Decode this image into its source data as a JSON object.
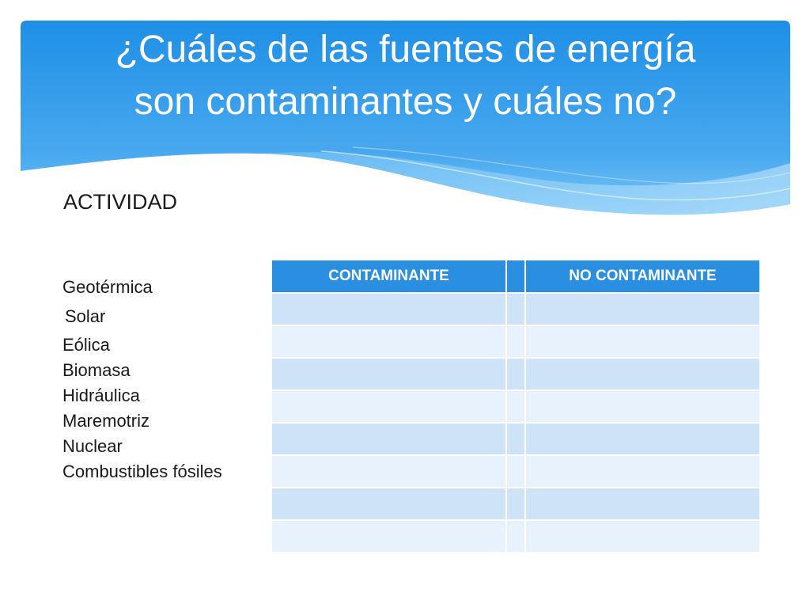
{
  "title": {
    "line1": "¿Cuáles de las fuentes de energía",
    "line2": "son contaminantes y cuáles no?"
  },
  "subtitle": "ACTIVIDAD",
  "sources": [
    "Geotérmica",
    "Solar",
    "Eólica",
    "Biomasa",
    "Hidráulica",
    "Maremotriz",
    "Nuclear",
    "Combustibles fósiles"
  ],
  "table": {
    "headers": [
      "CONTAMINANTE",
      "",
      "NO CONTAMINANTE"
    ],
    "row_count": 8
  },
  "colors": {
    "banner_top": "#1e8fe6",
    "banner_bottom": "#6ec1f5",
    "header": "#2a8fe0",
    "row_odd": "#cfe3f8",
    "row_even": "#e8f2fc"
  }
}
